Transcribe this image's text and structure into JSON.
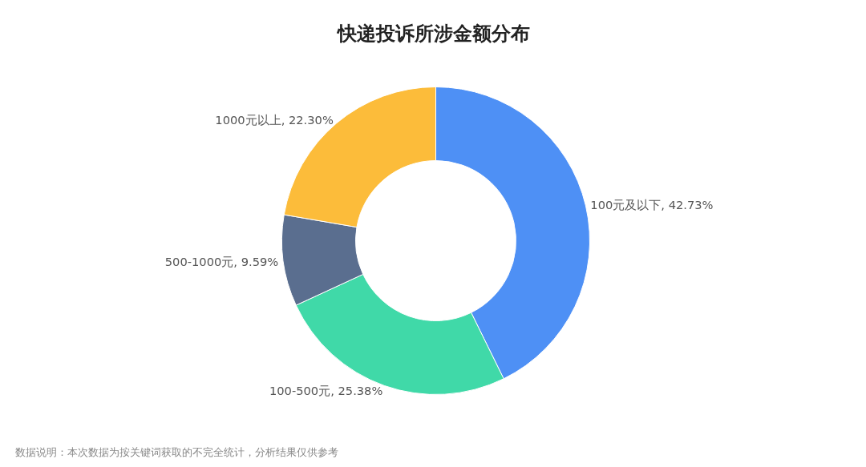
{
  "chart_data": {
    "type": "donut",
    "title": "快递投诉所涉金额分布",
    "categories": [
      "100元及以下",
      "100-500元",
      "500-1000元",
      "1000元以上"
    ],
    "values": [
      42.73,
      25.38,
      9.59,
      22.3
    ],
    "value_labels": [
      "42.73%",
      "25.38%",
      "9.59%",
      "22.30%"
    ],
    "colors": [
      "#4e90f5",
      "#40d9a8",
      "#5a6e8f",
      "#fcbc3a"
    ],
    "legend": false,
    "annotations": [
      "数据说明：本次数据为按关键词获取的不完全统计，分析结果仅供参考"
    ]
  }
}
